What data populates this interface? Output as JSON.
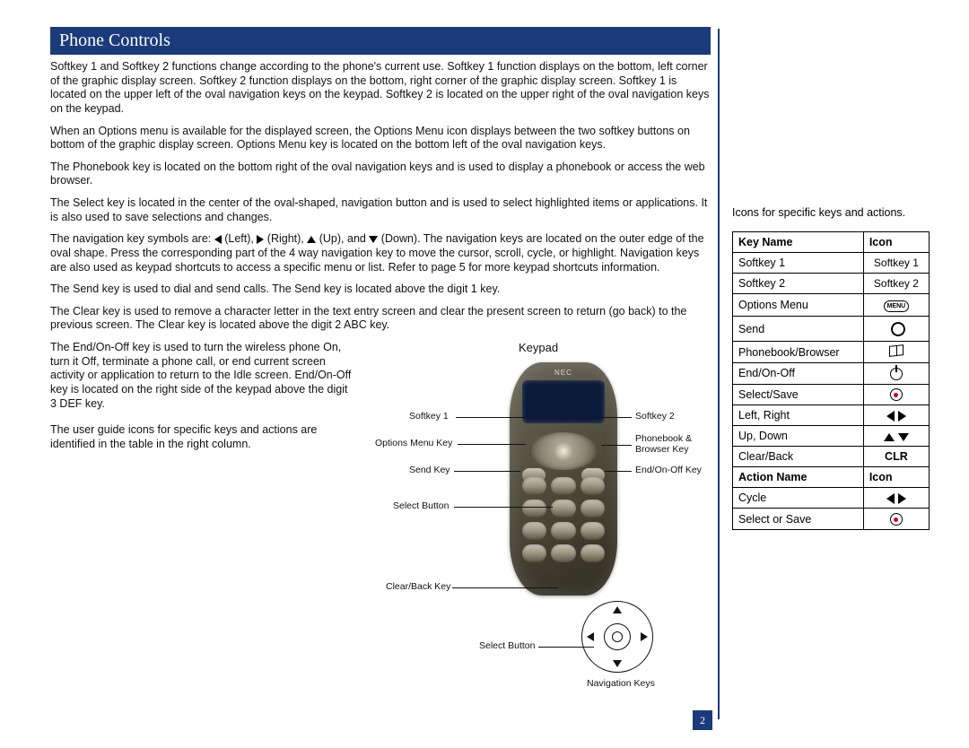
{
  "section_title": "Phone Controls",
  "page_number": "2",
  "paragraphs": {
    "p1": "Softkey 1 and Softkey 2 functions change according to the phone's current use. Softkey 1 function displays on the bottom, left corner of the graphic display screen. Softkey 2 function displays on the bottom, right corner of the graphic display screen. Softkey 1 is located on the upper left of the oval navigation keys on the keypad. Softkey 2 is located on the upper right of the oval navigation keys on the keypad.",
    "p2": "When an Options menu is available for the displayed screen, the Options Menu icon displays between the two softkey buttons on bottom of the graphic display screen. Options Menu key is located on the bottom left of the oval navigation keys.",
    "p3": "The Phonebook key is located on the bottom right of the oval navigation keys and is used to display a phonebook or access the web browser.",
    "p4": "The Select key is located in the center of the oval-shaped, navigation button and is used to select highlighted items or applications. It is also used to save selections and changes.",
    "p5a": "The navigation key symbols are: ",
    "p5b": " (Left), ",
    "p5c": " (Right), ",
    "p5d": " (Up), and ",
    "p5e": " (Down). The navigation keys are located on the outer edge of the oval shape. Press the corresponding part of the 4 way navigation key to move the cursor, scroll, cycle, or highlight. Navigation keys are also used as keypad shortcuts to access a specific menu or list. Refer to page 5 for more keypad shortcuts information.",
    "p6": "The Send key is used to dial and send calls. The Send key is located above the digit 1 key.",
    "p7": "The Clear key is used to remove a character letter in the text entry screen and clear the present screen to return (go back) to the previous screen. The Clear key is located above the digit 2 ABC key.",
    "p8": "The End/On-Off key is used to turn the wireless phone On, turn it Off, terminate a phone call, or end current screen activity or application to return to the Idle screen. End/On-Off key is located on the right side of the keypad above the digit 3 DEF key.",
    "p9": "The user guide icons for specific keys and actions are identified in the table in the right column."
  },
  "keypad": {
    "title": "Keypad",
    "brand": "NEC",
    "labels": {
      "softkey1": "Softkey 1",
      "softkey2": "Softkey 2",
      "options": "Options Menu Key",
      "phonebook": "Phonebook & Browser Key",
      "send": "Send Key",
      "end": "End/On-Off Key",
      "select": "Select Button",
      "select2": "Select Button",
      "clear": "Clear/Back Key",
      "nav": "Navigation Keys"
    }
  },
  "right": {
    "intro": "Icons for specific keys and actions.",
    "key_table": {
      "headers": {
        "name": "Key Name",
        "icon": "Icon"
      },
      "rows": [
        {
          "name": "Softkey 1",
          "icon_text": "Softkey 1",
          "type": "text"
        },
        {
          "name": "Softkey 2",
          "icon_text": "Softkey 2",
          "type": "text"
        },
        {
          "name": "Options Menu",
          "type": "menu",
          "menu_label": "MENU"
        },
        {
          "name": "Send",
          "type": "handset"
        },
        {
          "name": "Phonebook/Browser",
          "type": "book"
        },
        {
          "name": "End/On-Off",
          "type": "power"
        },
        {
          "name": "Select/Save",
          "type": "select"
        },
        {
          "name": "Left, Right",
          "type": "lr"
        },
        {
          "name": "Up, Down",
          "type": "ud"
        },
        {
          "name": "Clear/Back",
          "icon_text": "CLR",
          "type": "bold"
        }
      ]
    },
    "action_table": {
      "headers": {
        "name": "Action Name",
        "icon": "Icon"
      },
      "rows": [
        {
          "name": "Cycle",
          "type": "lr"
        },
        {
          "name": "Select or Save",
          "type": "select"
        }
      ]
    }
  },
  "colors": {
    "header_bg": "#1a3a7a",
    "text": "#111111",
    "accent_red": "#c03"
  }
}
